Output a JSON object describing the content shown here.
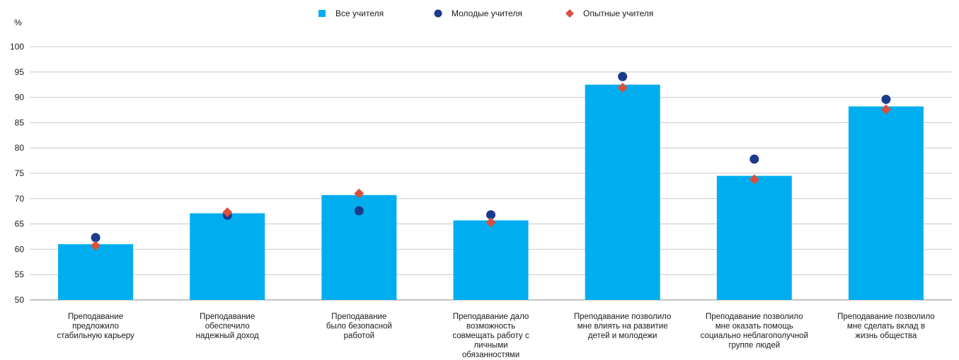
{
  "chart_data": {
    "type": "bar",
    "ylabel": "%",
    "ylim": [
      50,
      100
    ],
    "yticks": [
      50,
      55,
      60,
      65,
      70,
      75,
      80,
      85,
      90,
      95,
      100
    ],
    "grid": true,
    "legend_position": "top",
    "categories": [
      [
        "Преподавание",
        "предложило",
        "стабильную карьеру"
      ],
      [
        "Преподавание",
        "обеспечило",
        "надежный доход"
      ],
      [
        "Преподавание",
        "было безопасной",
        "работой"
      ],
      [
        "Преподавание дало",
        "возможность",
        "совмещать работу с",
        "личными",
        "обязанностями"
      ],
      [
        "Преподавание позволило",
        "мне влиять на развитие",
        "детей и молодежи"
      ],
      [
        "Преподавание позволило",
        "мне оказать помощь",
        "социально неблагополучной",
        "группе людей"
      ],
      [
        "Преподавание позволило",
        "мне сделать вклад в",
        "жизнь общества"
      ]
    ],
    "series": [
      {
        "name": "Все учителя",
        "marker": "square-bar",
        "color": "#00aeef",
        "values": [
          61,
          67.1,
          70.7,
          65.7,
          92.5,
          74.5,
          88.2
        ]
      },
      {
        "name": "Молодые учителя",
        "marker": "circle",
        "color": "#1a3a8c",
        "values": [
          62.3,
          66.7,
          67.6,
          66.8,
          94.1,
          77.8,
          89.6
        ]
      },
      {
        "name": "Опытные учителя",
        "marker": "diamond",
        "color": "#d9503f",
        "values": [
          60.7,
          67.3,
          71.0,
          65.3,
          91.9,
          73.8,
          87.6
        ]
      }
    ]
  }
}
